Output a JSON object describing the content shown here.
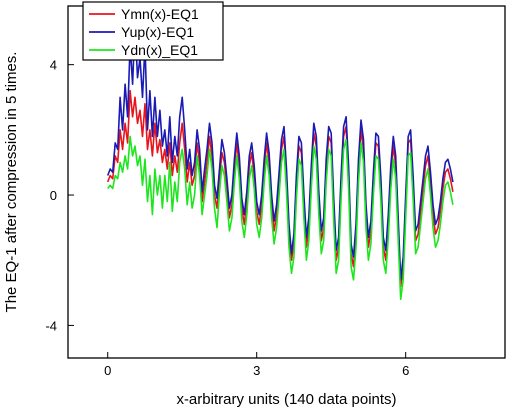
{
  "chart_data": {
    "type": "line",
    "title": "",
    "xlabel": "x-arbitrary units (140 data points)",
    "ylabel": "The EQ-1 after compression in 5 times.",
    "xlim": [
      -0.8,
      8.0
    ],
    "ylim": [
      -5.0,
      5.8
    ],
    "xticks": [
      0,
      3,
      6
    ],
    "xtick_labels": [
      "0",
      "3",
      "6"
    ],
    "yticks": [
      -4,
      0,
      4
    ],
    "ytick_labels": [
      "-4",
      "0",
      "4"
    ],
    "grid": false,
    "legend_position": "top-left",
    "series": [
      {
        "name": "Ymn(x)-EQ1",
        "color": "#e8141c",
        "x": [
          0.0,
          0.05,
          0.1,
          0.15,
          0.2,
          0.25,
          0.3,
          0.35,
          0.4,
          0.45,
          0.5,
          0.55,
          0.6,
          0.65,
          0.7,
          0.75,
          0.8,
          0.85,
          0.9,
          0.95,
          1.0,
          1.05,
          1.1,
          1.15,
          1.2,
          1.25,
          1.3,
          1.35,
          1.4,
          1.45,
          1.5,
          1.55,
          1.6,
          1.65,
          1.7,
          1.75,
          1.8,
          1.85,
          1.9,
          1.95,
          2.0,
          2.05,
          2.1,
          2.15,
          2.2,
          2.25,
          2.3,
          2.35,
          2.4,
          2.45,
          2.5,
          2.55,
          2.6,
          2.65,
          2.7,
          2.75,
          2.8,
          2.85,
          2.9,
          2.95,
          3.0,
          3.05,
          3.1,
          3.15,
          3.2,
          3.25,
          3.3,
          3.35,
          3.4,
          3.45,
          3.5,
          3.55,
          3.6,
          3.65,
          3.7,
          3.75,
          3.8,
          3.85,
          3.9,
          3.95,
          4.0,
          4.05,
          4.1,
          4.15,
          4.2,
          4.25,
          4.3,
          4.35,
          4.4,
          4.45,
          4.5,
          4.55,
          4.6,
          4.65,
          4.7,
          4.75,
          4.8,
          4.85,
          4.9,
          4.95,
          5.0,
          5.05,
          5.1,
          5.15,
          5.2,
          5.25,
          5.3,
          5.35,
          5.4,
          5.45,
          5.5,
          5.55,
          5.6,
          5.65,
          5.7,
          5.75,
          5.8,
          5.85,
          5.9,
          5.95,
          6.0,
          6.05,
          6.1,
          6.15,
          6.2,
          6.25,
          6.3,
          6.35,
          6.4,
          6.45,
          6.5,
          6.55,
          6.6,
          6.65,
          6.7,
          6.75,
          6.8,
          6.85,
          6.9,
          6.95
        ],
        "y": [
          0.4,
          0.6,
          0.5,
          1.2,
          1.0,
          2.0,
          1.4,
          2.2,
          1.6,
          3.2,
          2.4,
          3.0,
          2.2,
          2.6,
          1.8,
          2.8,
          1.4,
          2.0,
          1.2,
          2.2,
          1.3,
          1.7,
          1.0,
          1.4,
          0.8,
          1.6,
          0.6,
          1.2,
          0.7,
          1.6,
          2.2,
          1.4,
          0.4,
          1.0,
          0.3,
          0.6,
          1.6,
          1.0,
          -0.2,
          0.4,
          1.0,
          1.8,
          1.2,
          0.0,
          -0.4,
          0.5,
          1.3,
          1.0,
          0.2,
          -0.7,
          -0.3,
          0.8,
          1.6,
          0.9,
          -0.4,
          -0.9,
          -0.2,
          0.9,
          1.3,
          0.6,
          -0.5,
          -0.9,
          -0.3,
          0.8,
          1.6,
          1.0,
          -0.3,
          -1.1,
          -0.6,
          0.4,
          1.4,
          1.8,
          0.5,
          -1.2,
          -2.0,
          -1.5,
          0.3,
          1.5,
          1.3,
          -0.3,
          -1.6,
          -1.0,
          0.6,
          1.9,
          1.5,
          -0.2,
          -1.4,
          -1.0,
          0.8,
          1.8,
          1.6,
          -0.4,
          -2.0,
          -1.6,
          0.3,
          1.8,
          2.1,
          0.6,
          -1.8,
          -2.2,
          -1.2,
          0.8,
          2.0,
          1.4,
          -0.6,
          -1.6,
          -1.1,
          0.4,
          1.6,
          1.5,
          0.2,
          -1.6,
          -2.0,
          -0.9,
          0.6,
          1.5,
          0.9,
          -1.0,
          -2.8,
          -2.2,
          -0.3,
          1.6,
          1.7,
          0.3,
          -1.4,
          -1.2,
          -0.5,
          0.2,
          0.9,
          1.2,
          0.4,
          -0.6,
          -1.2,
          -1.0,
          -0.5,
          0.2,
          0.7,
          0.8,
          0.5,
          0.1
        ]
      },
      {
        "name": "Yup(x)-EQ1",
        "color": "#1a1ab4",
        "x": [
          0.0,
          0.05,
          0.1,
          0.15,
          0.2,
          0.25,
          0.3,
          0.35,
          0.4,
          0.45,
          0.5,
          0.55,
          0.6,
          0.65,
          0.7,
          0.75,
          0.8,
          0.85,
          0.9,
          0.95,
          1.0,
          1.05,
          1.1,
          1.15,
          1.2,
          1.25,
          1.3,
          1.35,
          1.4,
          1.45,
          1.5,
          1.55,
          1.6,
          1.65,
          1.7,
          1.75,
          1.8,
          1.85,
          1.9,
          1.95,
          2.0,
          2.05,
          2.1,
          2.15,
          2.2,
          2.25,
          2.3,
          2.35,
          2.4,
          2.45,
          2.5,
          2.55,
          2.6,
          2.65,
          2.7,
          2.75,
          2.8,
          2.85,
          2.9,
          2.95,
          3.0,
          3.05,
          3.1,
          3.15,
          3.2,
          3.25,
          3.3,
          3.35,
          3.4,
          3.45,
          3.5,
          3.55,
          3.6,
          3.65,
          3.7,
          3.75,
          3.8,
          3.85,
          3.9,
          3.95,
          4.0,
          4.05,
          4.1,
          4.15,
          4.2,
          4.25,
          4.3,
          4.35,
          4.4,
          4.45,
          4.5,
          4.55,
          4.6,
          4.65,
          4.7,
          4.75,
          4.8,
          4.85,
          4.9,
          4.95,
          5.0,
          5.05,
          5.1,
          5.15,
          5.2,
          5.25,
          5.3,
          5.35,
          5.4,
          5.45,
          5.5,
          5.55,
          5.6,
          5.65,
          5.7,
          5.75,
          5.8,
          5.85,
          5.9,
          5.95,
          6.0,
          6.05,
          6.1,
          6.15,
          6.2,
          6.25,
          6.3,
          6.35,
          6.4,
          6.45,
          6.5,
          6.55,
          6.6,
          6.65,
          6.7,
          6.75,
          6.8,
          6.85,
          6.9,
          6.95
        ],
        "y": [
          0.6,
          0.8,
          0.7,
          1.6,
          1.4,
          3.0,
          2.0,
          3.4,
          2.4,
          4.6,
          3.4,
          5.3,
          3.6,
          4.2,
          3.0,
          4.6,
          2.0,
          3.2,
          1.8,
          3.0,
          1.8,
          2.6,
          1.5,
          2.0,
          1.2,
          2.4,
          1.0,
          1.8,
          1.2,
          2.4,
          3.0,
          2.0,
          0.8,
          1.4,
          0.6,
          1.0,
          2.0,
          1.4,
          0.1,
          0.8,
          1.4,
          2.2,
          1.6,
          0.3,
          -0.1,
          0.8,
          1.7,
          1.3,
          0.5,
          -0.4,
          0.0,
          1.1,
          1.9,
          1.2,
          -0.1,
          -0.6,
          0.1,
          1.2,
          1.6,
          0.9,
          -0.2,
          -0.6,
          0.0,
          1.1,
          1.9,
          1.3,
          0.0,
          -0.8,
          -0.3,
          0.7,
          1.7,
          2.1,
          0.8,
          -0.9,
          -1.8,
          -1.2,
          0.6,
          1.8,
          1.6,
          0.0,
          -1.3,
          -0.7,
          0.9,
          2.2,
          1.8,
          0.1,
          -1.1,
          -0.7,
          1.1,
          2.1,
          1.9,
          -0.1,
          -1.7,
          -1.3,
          0.6,
          2.1,
          2.4,
          0.9,
          -1.5,
          -1.9,
          -0.9,
          1.1,
          2.3,
          1.7,
          -0.3,
          -1.3,
          -0.8,
          0.7,
          1.9,
          1.8,
          0.5,
          -1.3,
          -1.7,
          -0.6,
          0.9,
          1.8,
          1.2,
          -0.7,
          -2.6,
          -1.9,
          0.0,
          1.8,
          2.0,
          0.6,
          -1.1,
          -0.9,
          -0.2,
          0.5,
          1.2,
          1.5,
          0.7,
          -0.3,
          -0.9,
          -0.7,
          -0.2,
          0.5,
          1.0,
          1.1,
          0.8,
          0.4
        ]
      },
      {
        "name": "Ydn(x)_EQ1",
        "color": "#1ee61e",
        "x": [
          0.0,
          0.05,
          0.1,
          0.15,
          0.2,
          0.25,
          0.3,
          0.35,
          0.4,
          0.45,
          0.5,
          0.55,
          0.6,
          0.65,
          0.7,
          0.75,
          0.8,
          0.85,
          0.9,
          0.95,
          1.0,
          1.05,
          1.1,
          1.15,
          1.2,
          1.25,
          1.3,
          1.35,
          1.4,
          1.45,
          1.5,
          1.55,
          1.6,
          1.65,
          1.7,
          1.75,
          1.8,
          1.85,
          1.9,
          1.95,
          2.0,
          2.05,
          2.1,
          2.15,
          2.2,
          2.25,
          2.3,
          2.35,
          2.4,
          2.45,
          2.5,
          2.55,
          2.6,
          2.65,
          2.7,
          2.75,
          2.8,
          2.85,
          2.9,
          2.95,
          3.0,
          3.05,
          3.1,
          3.15,
          3.2,
          3.25,
          3.3,
          3.35,
          3.4,
          3.45,
          3.5,
          3.55,
          3.6,
          3.65,
          3.7,
          3.75,
          3.8,
          3.85,
          3.9,
          3.95,
          4.0,
          4.05,
          4.1,
          4.15,
          4.2,
          4.25,
          4.3,
          4.35,
          4.4,
          4.45,
          4.5,
          4.55,
          4.6,
          4.65,
          4.7,
          4.75,
          4.8,
          4.85,
          4.9,
          4.95,
          5.0,
          5.05,
          5.1,
          5.15,
          5.2,
          5.25,
          5.3,
          5.35,
          5.4,
          5.45,
          5.5,
          5.55,
          5.6,
          5.65,
          5.7,
          5.75,
          5.8,
          5.85,
          5.9,
          5.95,
          6.0,
          6.05,
          6.1,
          6.15,
          6.2,
          6.25,
          6.3,
          6.35,
          6.4,
          6.45,
          6.5,
          6.55,
          6.6,
          6.65,
          6.7,
          6.75,
          6.8,
          6.85,
          6.9,
          6.95
        ],
        "y": [
          0.2,
          0.3,
          0.2,
          0.6,
          0.5,
          1.0,
          0.7,
          1.2,
          0.8,
          1.8,
          1.2,
          1.5,
          0.9,
          1.2,
          0.3,
          1.1,
          -0.2,
          0.6,
          -0.6,
          0.8,
          0.0,
          0.6,
          -0.4,
          0.6,
          -0.2,
          1.0,
          -0.5,
          0.4,
          -0.2,
          1.0,
          1.4,
          0.8,
          -0.3,
          0.4,
          -0.4,
          0.0,
          1.2,
          0.6,
          -0.6,
          0.0,
          0.6,
          1.4,
          0.8,
          -0.4,
          -1.0,
          0.1,
          0.9,
          0.6,
          -0.2,
          -1.1,
          -0.7,
          0.4,
          1.2,
          0.5,
          -0.8,
          -1.3,
          -0.6,
          0.5,
          0.9,
          0.2,
          -0.9,
          -1.3,
          -0.7,
          0.4,
          1.2,
          0.6,
          -0.7,
          -1.5,
          -1.0,
          0.0,
          1.0,
          1.4,
          0.1,
          -1.6,
          -2.4,
          -1.9,
          -0.1,
          1.1,
          0.9,
          -0.7,
          -2.0,
          -1.4,
          0.2,
          1.5,
          1.1,
          -0.6,
          -1.8,
          -1.4,
          0.4,
          1.4,
          1.2,
          -0.8,
          -2.4,
          -2.0,
          -0.1,
          1.4,
          1.7,
          0.2,
          -2.2,
          -2.6,
          -1.6,
          0.4,
          1.6,
          1.0,
          -1.0,
          -2.0,
          -1.5,
          0.0,
          1.2,
          1.1,
          -0.2,
          -2.0,
          -2.4,
          -1.3,
          0.2,
          1.1,
          0.5,
          -1.4,
          -3.2,
          -2.6,
          -0.7,
          1.2,
          1.3,
          -0.1,
          -1.8,
          -1.6,
          -0.9,
          -0.2,
          0.5,
          0.8,
          0.0,
          -1.0,
          -1.6,
          -1.4,
          -0.9,
          -0.2,
          0.3,
          0.4,
          0.1,
          -0.3
        ]
      }
    ]
  }
}
